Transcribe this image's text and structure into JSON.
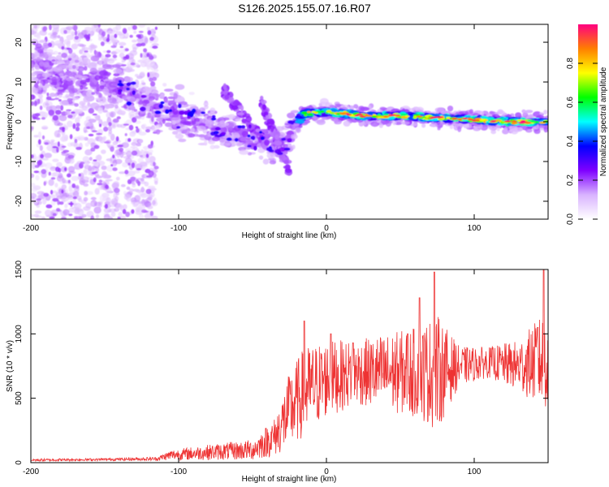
{
  "figure": {
    "title": "S126.2025.155.07.16.R07"
  },
  "chart_data": [
    {
      "type": "heatmap",
      "xlabel": "Height of straight line (km)",
      "ylabel": "Frequency (Hz)",
      "xlim": [
        -200,
        150
      ],
      "ylim": [
        -24.5,
        24.5
      ],
      "x_ticks": [
        -200,
        -100,
        0,
        100
      ],
      "y_ticks": [
        20,
        10,
        0,
        -10,
        -20
      ],
      "colorbar": {
        "label": "Normalized spectral amplitude",
        "range": [
          0,
          1
        ],
        "ticks": [
          0.0,
          0.2,
          0.4,
          0.6,
          0.8
        ],
        "colors": [
          "#ffffff",
          "#d9b3ff",
          "#7f00ff",
          "#0000ff",
          "#00ffff",
          "#00ff00",
          "#ffff00",
          "#ff7f00",
          "#ff0080"
        ]
      },
      "ridge": [
        {
          "x": -195,
          "y": 14
        },
        {
          "x": -175,
          "y": 10
        },
        {
          "x": -150,
          "y": 10
        },
        {
          "x": -125,
          "y": 6
        },
        {
          "x": -110,
          "y": 3
        },
        {
          "x": -90,
          "y": 0
        },
        {
          "x": -70,
          "y": -2
        },
        {
          "x": -50,
          "y": -4
        },
        {
          "x": -30,
          "y": -6
        },
        {
          "x": -15,
          "y": 2
        },
        {
          "x": 0,
          "y": 2.5
        },
        {
          "x": 25,
          "y": 1.5
        },
        {
          "x": 50,
          "y": 1.5
        },
        {
          "x": 75,
          "y": 1
        },
        {
          "x": 100,
          "y": 0.5
        },
        {
          "x": 125,
          "y": 0
        },
        {
          "x": 150,
          "y": 0
        }
      ],
      "grid": false,
      "legend": "colorbar-right"
    },
    {
      "type": "line",
      "xlabel": "Height of straight line (km)",
      "ylabel": "SNR (10 * v/v)",
      "xlim": [
        -200,
        150
      ],
      "ylim": [
        0,
        1500
      ],
      "x_ticks": [
        -200,
        -100,
        0,
        100
      ],
      "y_ticks": [
        0,
        500,
        1000,
        1500
      ],
      "color": "#ee3333",
      "envelope": [
        {
          "x": -200,
          "mean": 20,
          "spread": 10
        },
        {
          "x": -150,
          "mean": 25,
          "spread": 10
        },
        {
          "x": -115,
          "mean": 30,
          "spread": 15
        },
        {
          "x": -105,
          "mean": 60,
          "spread": 40
        },
        {
          "x": -80,
          "mean": 80,
          "spread": 60
        },
        {
          "x": -50,
          "mean": 100,
          "spread": 80
        },
        {
          "x": -35,
          "mean": 200,
          "spread": 150
        },
        {
          "x": -25,
          "mean": 400,
          "spread": 300
        },
        {
          "x": -15,
          "mean": 550,
          "spread": 350
        },
        {
          "x": 0,
          "mean": 650,
          "spread": 300
        },
        {
          "x": 20,
          "mean": 700,
          "spread": 250
        },
        {
          "x": 40,
          "mean": 700,
          "spread": 300
        },
        {
          "x": 60,
          "mean": 700,
          "spread": 350
        },
        {
          "x": 75,
          "mean": 700,
          "spread": 450
        },
        {
          "x": 90,
          "mean": 750,
          "spread": 150
        },
        {
          "x": 110,
          "mean": 780,
          "spread": 120
        },
        {
          "x": 130,
          "mean": 750,
          "spread": 200
        },
        {
          "x": 150,
          "mean": 800,
          "spread": 400
        }
      ],
      "peaks": [
        {
          "x": -15,
          "y": 1100
        },
        {
          "x": 3,
          "y": 1000
        },
        {
          "x": 18,
          "y": 930
        },
        {
          "x": 55,
          "y": 1000
        },
        {
          "x": 63,
          "y": 1280
        },
        {
          "x": 73,
          "y": 1480
        },
        {
          "x": 143,
          "y": 1050
        },
        {
          "x": 147,
          "y": 1500
        }
      ],
      "grid": false
    }
  ]
}
